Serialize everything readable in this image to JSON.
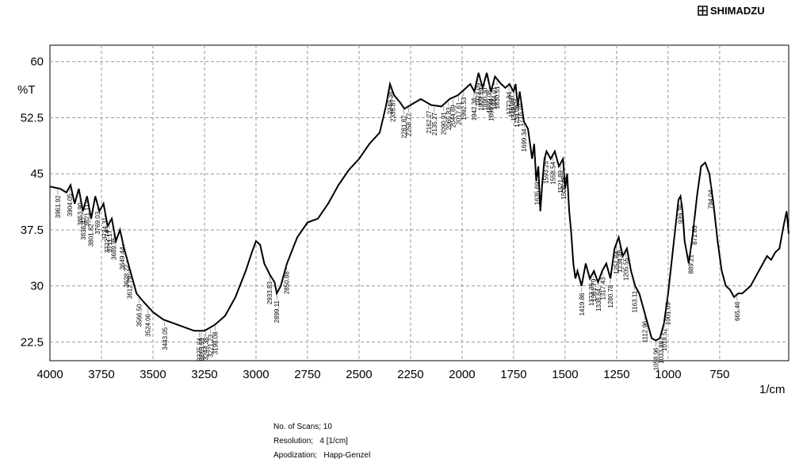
{
  "chart_data": {
    "type": "line",
    "brand": "SHIMADZU",
    "ylabel": "%T",
    "xlabel": "1/cm",
    "color": "#000000",
    "grid": true,
    "xlim": [
      4000,
      415
    ],
    "ylim": [
      20,
      62.2
    ],
    "xticks": [
      4000,
      3750,
      3500,
      3250,
      3000,
      2750,
      2500,
      2250,
      2000,
      1750,
      1500,
      1250,
      1000,
      750
    ],
    "yticks": [
      22.5,
      30,
      37.5,
      45,
      52.5,
      60
    ],
    "x": [
      4000,
      3950,
      3920,
      3900,
      3880,
      3860,
      3840,
      3820,
      3800,
      3780,
      3760,
      3740,
      3720,
      3700,
      3680,
      3660,
      3640,
      3620,
      3600,
      3580,
      3550,
      3500,
      3450,
      3400,
      3350,
      3300,
      3250,
      3200,
      3150,
      3100,
      3050,
      3020,
      3000,
      2980,
      2960,
      2933,
      2910,
      2899,
      2880,
      2850,
      2800,
      2750,
      2700,
      2650,
      2600,
      2550,
      2500,
      2450,
      2400,
      2370,
      2350,
      2330,
      2300,
      2280,
      2250,
      2200,
      2150,
      2100,
      2060,
      2020,
      2000,
      1960,
      1940,
      1920,
      1900,
      1880,
      1860,
      1840,
      1810,
      1790,
      1770,
      1750,
      1740,
      1730,
      1720,
      1700,
      1680,
      1660,
      1650,
      1640,
      1630,
      1620,
      1610,
      1600,
      1590,
      1570,
      1550,
      1530,
      1510,
      1500,
      1490,
      1480,
      1470,
      1460,
      1450,
      1440,
      1420,
      1400,
      1380,
      1360,
      1340,
      1320,
      1300,
      1280,
      1260,
      1240,
      1220,
      1200,
      1180,
      1160,
      1140,
      1120,
      1100,
      1080,
      1060,
      1040,
      1020,
      1000,
      980,
      960,
      950,
      940,
      930,
      920,
      900,
      880,
      860,
      840,
      820,
      800,
      780,
      760,
      740,
      720,
      700,
      680,
      660,
      640,
      620,
      600,
      580,
      560,
      540,
      520,
      500,
      480,
      460,
      440,
      425,
      415
    ],
    "values": [
      43.3,
      43,
      42.5,
      43.5,
      41,
      43,
      40,
      42,
      39,
      42,
      40,
      41,
      38,
      39,
      36,
      37.5,
      35,
      33,
      31,
      29,
      28,
      26.5,
      25.5,
      25,
      24.5,
      24,
      24,
      24.8,
      26,
      28.5,
      32,
      34.5,
      36,
      35.5,
      33,
      31.5,
      30.5,
      29,
      30,
      33,
      36.5,
      38.5,
      39,
      41,
      43.5,
      45.5,
      47,
      49,
      50.5,
      54,
      57,
      55.5,
      54.5,
      53.7,
      54.2,
      55,
      54.2,
      54,
      55,
      55.5,
      56,
      57,
      56,
      58.5,
      56.5,
      58.5,
      56,
      58,
      57,
      56.5,
      57,
      56,
      57,
      54,
      56,
      52,
      51,
      47,
      49,
      44,
      46,
      40,
      44,
      47,
      48,
      47,
      48,
      46,
      47,
      43,
      45,
      40,
      37,
      33,
      31,
      32,
      30,
      33,
      31,
      32,
      30.5,
      32,
      33,
      31,
      35,
      36.5,
      34,
      35,
      32,
      30,
      29,
      27,
      25,
      23,
      22.7,
      23,
      25,
      29,
      34,
      39,
      41.5,
      42,
      40,
      36,
      33,
      37,
      42,
      46,
      46.5,
      45,
      41,
      36,
      32,
      30,
      29.5,
      28.5,
      29,
      29,
      29.5,
      30,
      31,
      32,
      33,
      34,
      33.5,
      34.5,
      35,
      38,
      40,
      37
    ],
    "peaks": [
      {
        "value": 3961.92,
        "label": "3961.92"
      },
      {
        "value": 3904.05,
        "label": "3904.05"
      },
      {
        "value": 3853.9,
        "label": "3853.90"
      },
      {
        "value": 3838.47,
        "label": "3838.47"
      },
      {
        "value": 3821.11,
        "label": "3821.11"
      },
      {
        "value": 3801.82,
        "label": "3801.82"
      },
      {
        "value": 3769.03,
        "label": "3769.03"
      },
      {
        "value": 3734.31,
        "label": "3734.31"
      },
      {
        "value": 3722.74,
        "label": "3722.74"
      },
      {
        "value": 3711.17,
        "label": "3711.17"
      },
      {
        "value": 3689.95,
        "label": "3689.95"
      },
      {
        "value": 3649.44,
        "label": "3649.44"
      },
      {
        "value": 3628.22,
        "label": "3628.22"
      },
      {
        "value": 3612.79,
        "label": "3612.79"
      },
      {
        "value": 3566.5,
        "label": "3566.50"
      },
      {
        "value": 3524.06,
        "label": "3524.06"
      },
      {
        "value": 3443.05,
        "label": "3443.05"
      },
      {
        "value": 3275.24,
        "label": "3275.24"
      },
      {
        "value": 3265.59,
        "label": "3265.59"
      },
      {
        "value": 3244.38,
        "label": "3244.38"
      },
      {
        "value": 3221.23,
        "label": "3221.23"
      },
      {
        "value": 3198.08,
        "label": "3198.08"
      },
      {
        "value": 2933.83,
        "label": "2933.83"
      },
      {
        "value": 2899.11,
        "label": "2899.11"
      },
      {
        "value": 2850.88,
        "label": "2850.88"
      },
      {
        "value": 2349.38,
        "label": "2349.38"
      },
      {
        "value": 2335.87,
        "label": "2335.87"
      },
      {
        "value": 2281.87,
        "label": "2281.87"
      },
      {
        "value": 2258.72,
        "label": "2258.72"
      },
      {
        "value": 2162.27,
        "label": "2162.27"
      },
      {
        "value": 2135.27,
        "label": "2135.27"
      },
      {
        "value": 2090.91,
        "label": "2090.91"
      },
      {
        "value": 2065.83,
        "label": "2065.83"
      },
      {
        "value": 2044.69,
        "label": "2044.69"
      },
      {
        "value": 2017.61,
        "label": "2017.61"
      },
      {
        "value": 1992.53,
        "label": "1992.53"
      },
      {
        "value": 1942.38,
        "label": "1942.38"
      },
      {
        "value": 1923.09,
        "label": "1923.09"
      },
      {
        "value": 1909.59,
        "label": "1909.59"
      },
      {
        "value": 1890.3,
        "label": "1890.30"
      },
      {
        "value": 1869.08,
        "label": "1869.08"
      },
      {
        "value": 1859.44,
        "label": "1859.44"
      },
      {
        "value": 1844.01,
        "label": "1844.01"
      },
      {
        "value": 1830.51,
        "label": "1830.51"
      },
      {
        "value": 1772.84,
        "label": "1772.84"
      },
      {
        "value": 1761.07,
        "label": "1761.07"
      },
      {
        "value": 1749.49,
        "label": "1749.49"
      },
      {
        "value": 1734.06,
        "label": "1734.06"
      },
      {
        "value": 1716.7,
        "label": "1716.70"
      },
      {
        "value": 1699.34,
        "label": "1699.34"
      },
      {
        "value": 1635.69,
        "label": "1635.69"
      },
      {
        "value": 1593.25,
        "label": "1593.25"
      },
      {
        "value": 1558.54,
        "label": "1558.54"
      },
      {
        "value": 1521.89,
        "label": "1521.89"
      },
      {
        "value": 1506.46,
        "label": "1506.46"
      },
      {
        "value": 1419.86,
        "label": "1419.86"
      },
      {
        "value": 1373.36,
        "label": "1373.36"
      },
      {
        "value": 1361.79,
        "label": "1361.79"
      },
      {
        "value": 1338.64,
        "label": "1338.64"
      },
      {
        "value": 1317.43,
        "label": "1317.43"
      },
      {
        "value": 1280.78,
        "label": "1280.78"
      },
      {
        "value": 1251.84,
        "label": "1251.84"
      },
      {
        "value": 1234.48,
        "label": "1234.48"
      },
      {
        "value": 1205.55,
        "label": "1205.55"
      },
      {
        "value": 1163.11,
        "label": "1163.11"
      },
      {
        "value": 1112.96,
        "label": "1112.96"
      },
      {
        "value": 1058.96,
        "label": "1058.96"
      },
      {
        "value": 1033.88,
        "label": "1033.88"
      },
      {
        "value": 1018.52,
        "label": "1018.52"
      },
      {
        "value": 1001.09,
        "label": "1001.09"
      },
      {
        "value": 939.36,
        "label": "939.36"
      },
      {
        "value": 889.21,
        "label": "889.21"
      },
      {
        "value": 871.85,
        "label": "871.85"
      },
      {
        "value": 794.04,
        "label": "794.04"
      },
      {
        "value": 665.46,
        "label": "665.46"
      }
    ],
    "notes": [
      "No. of Scans; 10",
      "Resolution;   4 [1/cm]",
      "Apodization;   Happ-Genzel"
    ]
  }
}
